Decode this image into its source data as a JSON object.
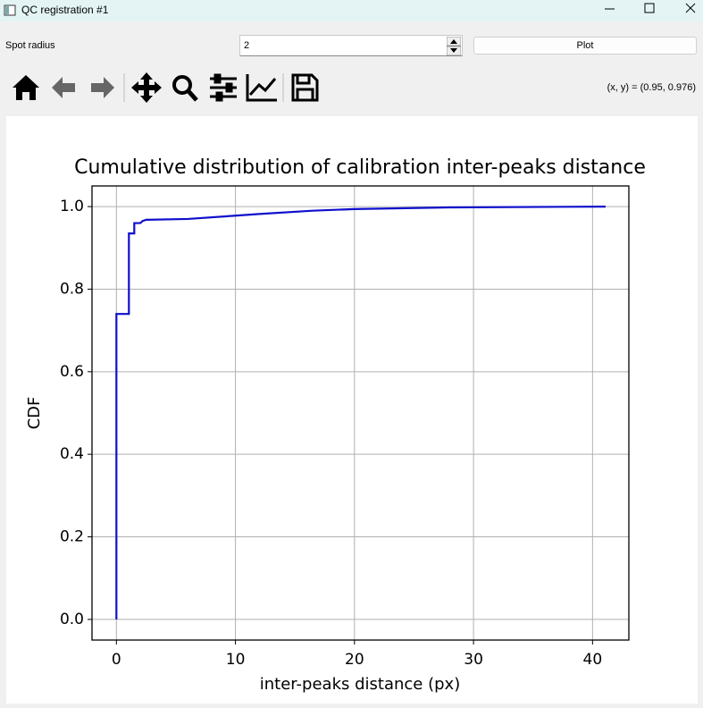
{
  "window": {
    "title": "QC registration #1"
  },
  "controls": {
    "spot_radius_label": "Spot radius",
    "spot_radius_value": "2",
    "plot_button": "Plot"
  },
  "toolbar": {
    "coordinates": "(x, y) = (0.95, 0.976)"
  },
  "chart_data": {
    "type": "line",
    "title": "Cumulative distribution of calibration inter-peaks distance",
    "xlabel": "inter-peaks distance (px)",
    "ylabel": "CDF",
    "x": [
      0,
      0,
      1.05,
      1.05,
      1.5,
      1.5,
      2,
      2.2,
      2.5,
      6,
      10,
      12,
      16.5,
      20,
      28,
      41.1
    ],
    "values": [
      0,
      0.74,
      0.74,
      0.935,
      0.935,
      0.96,
      0.96,
      0.965,
      0.968,
      0.97,
      0.978,
      0.982,
      0.99,
      0.994,
      0.998,
      1.0
    ],
    "color": "#0f0fcc",
    "xlim": [
      -2.05,
      43.05
    ],
    "ylim": [
      -0.05,
      1.05
    ],
    "xticks": [
      0,
      10,
      20,
      30,
      40
    ],
    "yticks": [
      {
        "value": 0,
        "label": "0.0"
      },
      0.2,
      0.4,
      0.6,
      0.8,
      {
        "value": 1,
        "label": "1.0"
      }
    ],
    "grid": true
  }
}
